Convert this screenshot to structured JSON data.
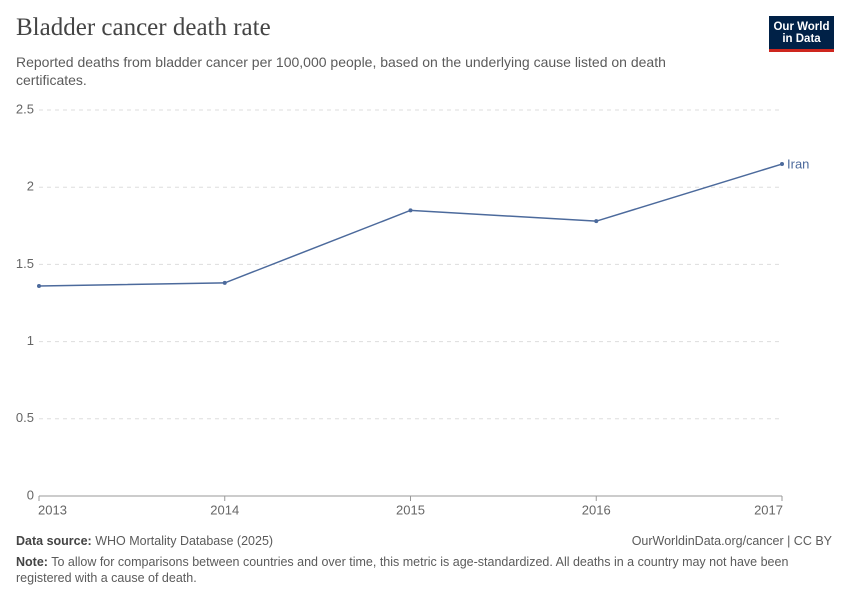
{
  "chart_data": {
    "type": "line",
    "title": "Bladder cancer death rate",
    "subtitle": "Reported deaths from bladder cancer per 100,000 people, based on the underlying cause listed on death certificates.",
    "x": [
      2013,
      2014,
      2015,
      2016,
      2017
    ],
    "series": [
      {
        "name": "Iran",
        "color": "#4c6a9c",
        "values": [
          1.36,
          1.38,
          1.85,
          1.78,
          2.15
        ]
      }
    ],
    "xlim": [
      2013,
      2017
    ],
    "xticks": [
      2013,
      2014,
      2015,
      2016,
      2017
    ],
    "ylim": [
      0,
      2.5
    ],
    "yticks": [
      0,
      0.5,
      1,
      1.5,
      2,
      2.5
    ],
    "grid": true
  },
  "logo": "Our World in Data",
  "source_label": "Data source:",
  "source": "WHO Mortality Database (2025)",
  "url_license": "OurWorldinData.org/cancer | CC BY",
  "note_label": "Note:",
  "note": "To allow for comparisons between countries and over time, this metric is age-standardized. All deaths in a country may not have been registered with a cause of death."
}
